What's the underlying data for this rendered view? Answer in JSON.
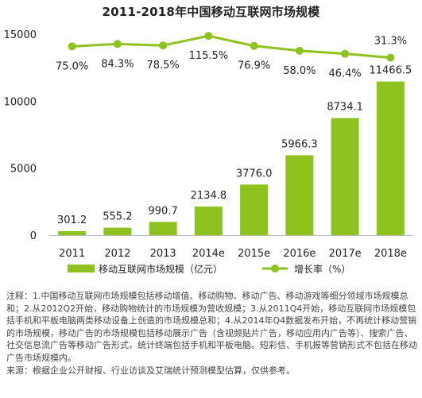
{
  "chart_data": {
    "type": "bar",
    "title": "2011-2018年中国移动互联网市场规模",
    "categories": [
      "2011",
      "2012",
      "2013",
      "2014e",
      "2015e",
      "2016e",
      "2017e",
      "2018e"
    ],
    "series": [
      {
        "name": "移动互联网市场规模（亿元）",
        "type": "bar",
        "values": [
          301.2,
          555.2,
          990.7,
          2134.8,
          3776.0,
          5966.3,
          8734.1,
          11466.5
        ],
        "value_labels": [
          "301.2",
          "555.2",
          "990.7",
          "2134.8",
          "3776.0",
          "5966.3",
          "8734.1",
          "11466.5"
        ]
      },
      {
        "name": "增长率（%）",
        "type": "line",
        "values": [
          75.0,
          84.3,
          78.5,
          115.5,
          76.9,
          58.0,
          46.4,
          31.3
        ],
        "value_labels": [
          "75.0%",
          "84.3%",
          "78.5%",
          "115.5%",
          "76.9%",
          "58.0%",
          "46.4%",
          "31.3%"
        ]
      }
    ],
    "ylim": [
      0,
      15000
    ],
    "y_ticks": [
      "0",
      "5000",
      "10000",
      "15000"
    ],
    "legend_position": "bottom",
    "colors": {
      "bar": "#8dc21f",
      "line": "#8dc21f",
      "axis": "#bbbbbb"
    }
  },
  "notes": [
    "注释：1.中国移动互联网市场规模包括移动增值、移动购物、移动广告、移动游戏等细分领域市场规模总和；2.从2012Q2开始，移动购物统计的市场规模为营收规模；3.从2011Q4开始，移动互联网市场规模包括手机和平板电脑两类移动设备上创造的市场规模总和；4.从2014年Q4数据发布开始，不再统计移动营销的市场规模，移动广告的市场规模包括移动展示广告（含视频贴片广告，移动应用内广告等）、搜索广告、社交信息流广告等移动广告形式，统计终端包括手机和平板电脑。短彩信、手机报等营销形式不包括在移动广告市场规模内。",
    "来源：根据企业公开财报、行业访谈及艾瑞统计预测模型估算，仅供参考。"
  ]
}
